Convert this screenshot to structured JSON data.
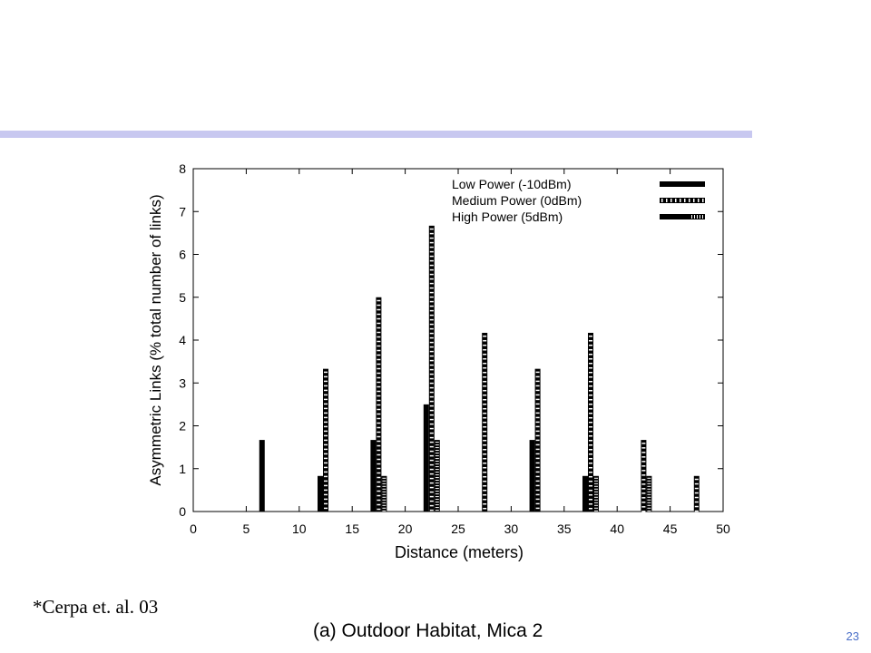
{
  "slide": {
    "citation": "*Cerpa et. al. 03",
    "caption": "(a) Outdoor Habitat, Mica 2",
    "page_number": "23",
    "accent_color": "#c8c8f0",
    "page_number_color": "#4a6fc8"
  },
  "chart_data": {
    "type": "bar",
    "title": "",
    "xlabel": "Distance (meters)",
    "ylabel": "Asymmetric Links (% total number of links)",
    "xlim": [
      0,
      50
    ],
    "ylim": [
      0,
      8
    ],
    "xticks": [
      0,
      5,
      10,
      15,
      20,
      25,
      30,
      35,
      40,
      45,
      50
    ],
    "yticks": [
      0,
      1,
      2,
      3,
      4,
      5,
      6,
      7,
      8
    ],
    "grid": false,
    "legend_position": "top-right",
    "categories": [
      7,
      12.5,
      17.5,
      22.5,
      27.5,
      32.5,
      37.5,
      42.5,
      47.5
    ],
    "series": [
      {
        "name": "Low Power (-10dBm)",
        "pattern": "solid",
        "values": [
          1.67,
          0.83,
          1.67,
          2.5,
          0,
          1.67,
          0.83,
          0,
          0
        ]
      },
      {
        "name": "Medium Power (0dBm)",
        "pattern": "dashed",
        "values": [
          0,
          3.33,
          5.0,
          6.67,
          4.17,
          3.33,
          4.17,
          1.67,
          0.83
        ]
      },
      {
        "name": "High Power (5dBm)",
        "pattern": "dotted",
        "values": [
          0,
          0,
          0.83,
          1.67,
          0,
          0,
          0.83,
          0.83,
          0
        ]
      }
    ]
  }
}
